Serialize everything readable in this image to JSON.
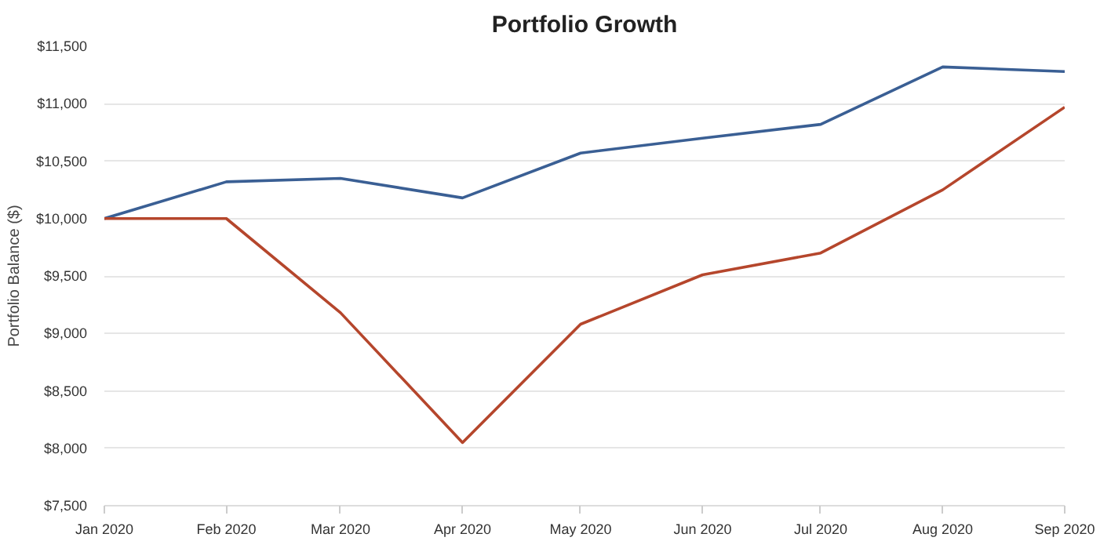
{
  "chart_data": {
    "type": "line",
    "title": "Portfolio Growth",
    "ylabel": "Portfolio Balance ($)",
    "x": [
      "2020-01",
      "2020-02",
      "2020-03",
      "2020-04",
      "2020-05",
      "2020-06",
      "2020-07",
      "2020-08",
      "2020-09"
    ],
    "series": [
      {
        "color": "#3a5f94",
        "values": [
          10000,
          10320,
          10350,
          10180,
          10570,
          10700,
          10820,
          11320,
          11280
        ]
      },
      {
        "color": "#b5462c",
        "values": [
          10000,
          10000,
          9180,
          8050,
          9080,
          9510,
          9700,
          10250,
          10970
        ]
      }
    ],
    "xlim": [
      "2020-01",
      "2020-09"
    ],
    "xticks": [
      {
        "value": "2020-01",
        "label": "Jan 2020"
      },
      {
        "value": "2020-02",
        "label": "Feb 2020"
      },
      {
        "value": "2020-03",
        "label": "Mar 2020"
      },
      {
        "value": "2020-04",
        "label": "Apr 2020"
      },
      {
        "value": "2020-05",
        "label": "May 2020"
      },
      {
        "value": "2020-06",
        "label": "Jun 2020"
      },
      {
        "value": "2020-07",
        "label": "Jul 2020"
      },
      {
        "value": "2020-08",
        "label": "Aug 2020"
      },
      {
        "value": "2020-09",
        "label": "Sep 2020"
      }
    ],
    "ylim": [
      7500,
      11500
    ],
    "yticks": [
      {
        "value": 7500,
        "label": "$7,500"
      },
      {
        "value": 8000,
        "label": "$8,000"
      },
      {
        "value": 8500,
        "label": "$8,500"
      },
      {
        "value": 9000,
        "label": "$9,000"
      },
      {
        "value": 9500,
        "label": "$9,500"
      },
      {
        "value": 10000,
        "label": "$10,000"
      },
      {
        "value": 10500,
        "label": "$10,500"
      },
      {
        "value": 11000,
        "label": "$11,000"
      },
      {
        "value": 11500,
        "label": "$11,500"
      }
    ],
    "grid": "y",
    "marker": "none",
    "line_style": "solid"
  }
}
